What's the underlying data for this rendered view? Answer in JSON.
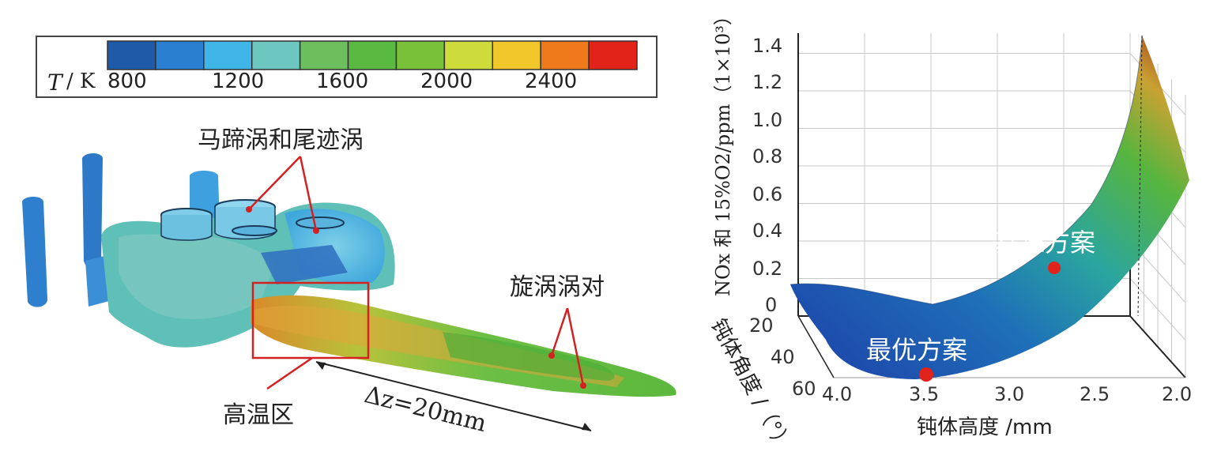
{
  "colorbar": {
    "var_symbol": "T",
    "unit": "/ K",
    "tick_labels": [
      "800",
      "1200",
      "1600",
      "2000",
      "2400"
    ],
    "colors": [
      "#1f5aa8",
      "#2b7fd0",
      "#3fb5e8",
      "#6ec6c0",
      "#6dbf5e",
      "#59b940",
      "#79c138",
      "#cddc3a",
      "#f2c72b",
      "#ee7a1c",
      "#e2231a"
    ]
  },
  "left_panel": {
    "annotations": {
      "horseshoe_wake": "马蹄涡和尾迹涡",
      "vortex_pair": "旋涡涡对",
      "high_temp": "高温区",
      "delta_z": "Δz=20mm"
    }
  },
  "chart_data": {
    "type": "surface",
    "z_axis_label": "NOx 和 15%O2/ppm（1×10³）",
    "x_axis_label": "钝体高度 /mm",
    "y_axis_label": "钝体角度 /（°）",
    "z_ticks": [
      "0",
      "0.2",
      "0.4",
      "0.6",
      "0.8",
      "1.0",
      "1.2",
      "1.4"
    ],
    "x_ticks": [
      "4.0",
      "3.5",
      "3.0",
      "2.5",
      "2.0"
    ],
    "y_ticks": [
      "20",
      "40",
      "60"
    ],
    "points": [
      {
        "label": "基准方案",
        "color": "#e2231a"
      },
      {
        "label": "最优方案",
        "color": "#e2231a"
      }
    ],
    "zlim": [
      0,
      1.4
    ],
    "grid": true
  }
}
